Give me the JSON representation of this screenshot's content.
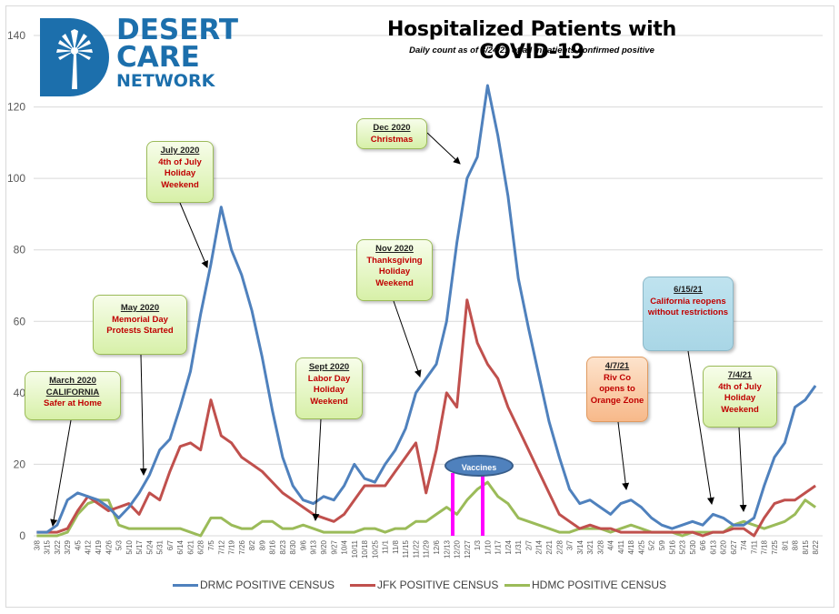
{
  "header": {
    "logo": {
      "line1": "DESERT",
      "line2": "CARE",
      "line3": "NETWORK",
      "icon": "palm-tree-icon",
      "color": "#1c6fac"
    },
    "title": "Hospitalized Patients with COVID-19",
    "subtitle": "Daily count as of 8/24/21 of all inpatients confirmed positive"
  },
  "annotations": [
    {
      "id": "march-2020",
      "heading": "March 2020",
      "heading2": "CALIFORNIA",
      "body": "Safer at Home",
      "style": "green"
    },
    {
      "id": "may-2020",
      "heading": "May 2020",
      "body": "Memorial Day Protests Started",
      "style": "green"
    },
    {
      "id": "july-2020",
      "heading": "July 2020",
      "body": "4th of July Holiday Weekend",
      "style": "green"
    },
    {
      "id": "sept-2020",
      "heading": "Sept 2020",
      "body": "Labor Day Holiday Weekend",
      "style": "green"
    },
    {
      "id": "nov-2020",
      "heading": "Nov 2020",
      "body": "Thanksgiving Holiday Weekend",
      "style": "green"
    },
    {
      "id": "dec-2020",
      "heading": "Dec 2020",
      "body": "Christmas",
      "style": "green"
    },
    {
      "id": "apr-2021",
      "heading": "4/7/21",
      "body": "Riv Co opens to Orange Zone",
      "style": "orange"
    },
    {
      "id": "jun-2021",
      "heading": "6/15/21",
      "body": "California reopens without restrictions",
      "style": "blue"
    },
    {
      "id": "jul-2021",
      "heading": "7/4/21",
      "body": "4th of July Holiday Weekend",
      "style": "green"
    }
  ],
  "vaccines_label": "Vaccines",
  "vaccine_marker_color": "#ff00ff",
  "chart_data": {
    "type": "line",
    "title": "Hospitalized Patients with COVID-19",
    "subtitle": "Daily count as of 8/24/21 of all inpatients confirmed positive",
    "xlabel": "",
    "ylabel": "",
    "ylim": [
      0,
      140
    ],
    "yticks": [
      0,
      20,
      40,
      60,
      80,
      100,
      120,
      140
    ],
    "grid": true,
    "legend_position": "bottom",
    "x": [
      "3/8",
      "3/15",
      "3/22",
      "3/29",
      "4/5",
      "4/12",
      "4/19",
      "4/26",
      "5/3",
      "5/10",
      "5/17",
      "5/24",
      "5/31",
      "6/7",
      "6/14",
      "6/21",
      "6/28",
      "7/5",
      "7/12",
      "7/19",
      "7/26",
      "8/2",
      "8/9",
      "8/16",
      "8/23",
      "8/30",
      "9/6",
      "9/13",
      "9/20",
      "9/27",
      "10/4",
      "10/11",
      "10/18",
      "10/25",
      "11/1",
      "11/8",
      "11/15",
      "11/22",
      "11/29",
      "12/6",
      "12/13",
      "12/20",
      "12/27",
      "1/3",
      "1/10",
      "1/17",
      "1/24",
      "1/31",
      "2/7",
      "2/14",
      "2/21",
      "2/28",
      "3/7",
      "3/14",
      "3/21",
      "3/28",
      "4/4",
      "4/11",
      "4/18",
      "4/25",
      "5/2",
      "5/9",
      "5/16",
      "5/23",
      "5/30",
      "6/6",
      "6/13",
      "6/20",
      "6/27",
      "7/4",
      "7/11",
      "7/18",
      "7/25",
      "8/1",
      "8/8",
      "8/15",
      "8/22"
    ],
    "series": [
      {
        "name": "DRMC POSITIVE CENSUS",
        "color": "#4f81bd",
        "values": [
          1,
          1,
          3,
          10,
          12,
          11,
          10,
          8,
          5,
          8,
          12,
          17,
          24,
          27,
          36,
          46,
          62,
          76,
          92,
          80,
          73,
          63,
          50,
          35,
          22,
          14,
          10,
          9,
          11,
          10,
          14,
          20,
          16,
          15,
          20,
          24,
          30,
          40,
          44,
          48,
          60,
          82,
          100,
          106,
          126,
          112,
          95,
          72,
          58,
          45,
          32,
          22,
          13,
          9,
          10,
          8,
          6,
          9,
          10,
          8,
          5,
          3,
          2,
          3,
          4,
          3,
          6,
          5,
          3,
          3,
          5,
          14,
          22,
          26,
          36,
          38,
          42
        ]
      },
      {
        "name": "JFK POSITIVE CENSUS",
        "color": "#c0504d",
        "values": [
          1,
          1,
          1,
          2,
          7,
          11,
          9,
          7,
          8,
          9,
          6,
          12,
          10,
          18,
          25,
          26,
          24,
          38,
          28,
          26,
          22,
          20,
          18,
          15,
          12,
          10,
          8,
          6,
          5,
          4,
          6,
          10,
          14,
          14,
          14,
          18,
          22,
          26,
          12,
          24,
          40,
          36,
          66,
          54,
          48,
          44,
          36,
          30,
          24,
          18,
          12,
          6,
          4,
          2,
          3,
          2,
          2,
          1,
          1,
          1,
          1,
          1,
          1,
          1,
          1,
          0,
          1,
          1,
          2,
          2,
          0,
          5,
          9,
          10,
          10,
          12,
          14
        ]
      },
      {
        "name": "HDMC POSITIVE CENSUS",
        "color": "#9bbb59",
        "values": [
          0,
          0,
          0,
          1,
          6,
          9,
          10,
          10,
          3,
          2,
          2,
          2,
          2,
          2,
          2,
          1,
          0,
          5,
          5,
          3,
          2,
          2,
          4,
          4,
          2,
          2,
          3,
          2,
          1,
          1,
          1,
          1,
          2,
          2,
          1,
          2,
          2,
          4,
          4,
          6,
          8,
          6,
          10,
          13,
          15,
          11,
          9,
          5,
          4,
          3,
          2,
          1,
          1,
          2,
          2,
          2,
          1,
          2,
          3,
          2,
          1,
          1,
          1,
          0,
          1,
          1,
          1,
          1,
          3,
          4,
          3,
          2,
          3,
          4,
          6,
          10,
          8
        ]
      }
    ],
    "vertical_markers": [
      "12/17",
      "1/7"
    ]
  }
}
